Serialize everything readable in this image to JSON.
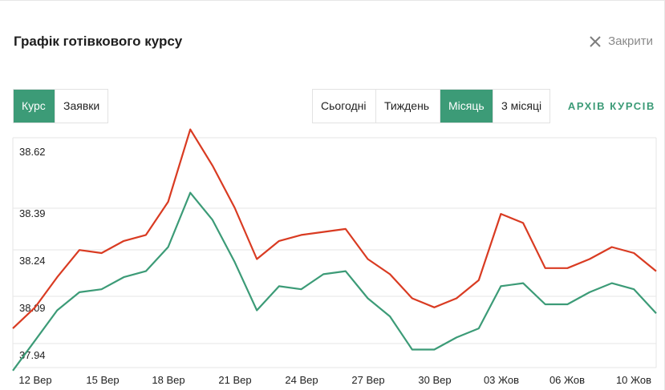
{
  "header": {
    "title": "Графік готівкового курсу",
    "close_label": "Закрити"
  },
  "tabs_left": [
    {
      "label": "Курс",
      "active": true
    },
    {
      "label": "Заявки",
      "active": false
    }
  ],
  "tabs_period": [
    {
      "label": "Сьогодні",
      "active": false
    },
    {
      "label": "Тиждень",
      "active": false
    },
    {
      "label": "Місяць",
      "active": true
    },
    {
      "label": "3 місяці",
      "active": false
    }
  ],
  "archive_label": "АРХІВ КУРСІВ",
  "colors": {
    "accent": "#3c9b77",
    "sell_line": "#d93b22",
    "buy_line": "#3c9b77",
    "grid": "#e5e5e5"
  },
  "icons": {
    "close": "close-icon"
  },
  "chart_data": {
    "type": "line",
    "y_ticks": [
      "38.62",
      "38.39",
      "38.24",
      "38.09",
      "37.94"
    ],
    "x_ticks": [
      "12 Вер",
      "15 Вер",
      "18 Вер",
      "21 Вер",
      "24 Вер",
      "27 Вер",
      "30 Вер",
      "03 Жов",
      "06 Жов",
      "10 Жов"
    ],
    "grid": true,
    "series": [
      {
        "color": "#d93b22",
        "values": [
          38.03,
          38.1,
          38.2,
          38.29,
          38.28,
          38.32,
          38.34,
          38.45,
          38.69,
          38.57,
          38.43,
          38.26,
          38.32,
          38.34,
          38.35,
          38.36,
          38.26,
          38.21,
          38.13,
          38.1,
          38.13,
          38.19,
          38.41,
          38.38,
          38.23,
          38.23,
          38.26,
          38.3,
          38.28,
          38.22
        ]
      },
      {
        "color": "#3c9b77",
        "values": [
          37.89,
          37.99,
          38.09,
          38.15,
          38.16,
          38.2,
          38.22,
          38.3,
          38.48,
          38.39,
          38.25,
          38.09,
          38.17,
          38.16,
          38.21,
          38.22,
          38.13,
          38.07,
          37.96,
          37.96,
          38,
          38.03,
          38.17,
          38.18,
          38.11,
          38.11,
          38.15,
          38.18,
          38.16,
          38.08
        ]
      }
    ]
  }
}
